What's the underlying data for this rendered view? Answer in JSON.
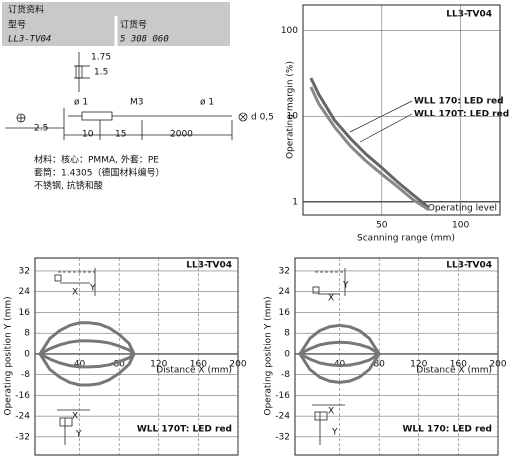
{
  "header": {
    "title": "订货资料",
    "model_label": "型号",
    "order_label": "订货号",
    "model": "LL3-TV04",
    "order": "5 308 060"
  },
  "drawing": {
    "dim_175": "1.75",
    "dim_15": "1.5",
    "dia_left": "ø 1",
    "thread": "M3",
    "dia_right": "ø 1",
    "dim_25": "2.5",
    "dim_10": "10",
    "dim_15b": "15",
    "dim_2000": "2000",
    "fiber_dia": "d 0,5",
    "material": [
      "材料：核心：PMMA, 外套：PE",
      "套筒：1.4305（德国材料编号）",
      "不锈钢, 抗锈和酸"
    ]
  },
  "chart_data": [
    {
      "type": "line",
      "title": "LL3-TV04",
      "x_label": "Scanning range (mm)",
      "y_label": "Operating margin (%)",
      "annotation": "Operating level",
      "log_y": true,
      "grid": true,
      "x": [
        5,
        10,
        20,
        30,
        40,
        50,
        60,
        70,
        80
      ],
      "series": [
        {
          "name": "WLL 170: LED red",
          "color": "#666666",
          "values": [
            28,
            18,
            9,
            5.5,
            3.6,
            2.5,
            1.7,
            1.2,
            0.85
          ]
        },
        {
          "name": "WLL 170T: LED red",
          "color": "#888888",
          "values": [
            22,
            14,
            7.5,
            4.5,
            3,
            2.1,
            1.5,
            1.05,
            0.8
          ]
        }
      ],
      "xlim": [
        0,
        125
      ],
      "xticks": [
        50,
        100
      ],
      "ylim": [
        0.7,
        200
      ],
      "yticks": [
        1,
        10,
        100
      ]
    },
    {
      "type": "line",
      "title": "LL3-TV04",
      "x_label": "Distance X (mm)",
      "y_label": "Operating position Y (mm)",
      "annotation": "WLL 170T: LED red",
      "inset_labels": [
        "X",
        "Y",
        "X",
        "Y"
      ],
      "grid": true,
      "x": [
        0,
        10,
        20,
        30,
        40,
        50,
        60,
        70,
        80,
        90,
        95
      ],
      "series": [
        {
          "color": "#777777",
          "values": [
            0,
            6,
            9,
            11,
            12,
            12,
            11.5,
            10,
            7.5,
            4,
            0
          ]
        },
        {
          "color": "#777777",
          "values": [
            0,
            2,
            3.5,
            4.5,
            5,
            5,
            4.8,
            4.2,
            3,
            1.5,
            0
          ]
        },
        {
          "color": "#777777",
          "values": [
            0,
            -2,
            -3.5,
            -4.5,
            -5,
            -5,
            -4.8,
            -4.2,
            -3,
            -1.5,
            0
          ]
        },
        {
          "color": "#777777",
          "values": [
            0,
            -6,
            -9,
            -11,
            -12,
            -12,
            -11.5,
            -10,
            -7.5,
            -4,
            0
          ]
        }
      ],
      "xlim": [
        -5,
        200
      ],
      "xticks": [
        40,
        80,
        120,
        160,
        200
      ],
      "ylim": [
        -39,
        37
      ],
      "yticks": [
        32,
        24,
        16,
        8,
        0,
        -8,
        -16,
        -24,
        -32
      ]
    },
    {
      "type": "line",
      "title": "LL3-TV04",
      "x_label": "Distance X (mm)",
      "y_label": "Operating position Y (mm)",
      "annotation": "WLL 170: LED red",
      "inset_labels": [
        "X",
        "Y",
        "X",
        "Y"
      ],
      "grid": true,
      "x": [
        0,
        10,
        20,
        30,
        40,
        50,
        60,
        70,
        80
      ],
      "series": [
        {
          "color": "#777777",
          "values": [
            0,
            6,
            9,
            10.5,
            11,
            10.5,
            9,
            6,
            0
          ]
        },
        {
          "color": "#777777",
          "values": [
            0,
            2,
            3.5,
            4.2,
            4.5,
            4.3,
            3.6,
            2.4,
            0
          ]
        },
        {
          "color": "#777777",
          "values": [
            0,
            -2,
            -3.5,
            -4.2,
            -4.5,
            -4.3,
            -3.6,
            -2.4,
            0
          ]
        },
        {
          "color": "#777777",
          "values": [
            0,
            -6,
            -9,
            -10.5,
            -11,
            -10.5,
            -9,
            -6,
            0
          ]
        }
      ],
      "xlim": [
        -5,
        200
      ],
      "xticks": [
        40,
        80,
        120,
        160,
        200
      ],
      "ylim": [
        -39,
        37
      ],
      "yticks": [
        32,
        24,
        16,
        8,
        0,
        -8,
        -16,
        -24,
        -32
      ]
    }
  ]
}
